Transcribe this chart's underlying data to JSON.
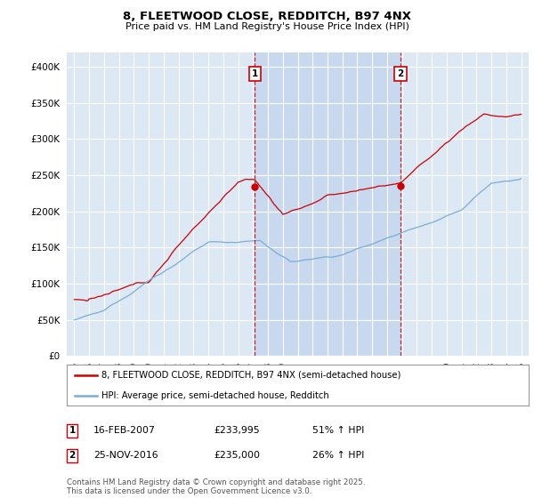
{
  "title_line1": "8, FLEETWOOD CLOSE, REDDITCH, B97 4NX",
  "title_line2": "Price paid vs. HM Land Registry's House Price Index (HPI)",
  "background_color": "#ffffff",
  "plot_bg_color": "#dde8f5",
  "shade_color": "#c8d8ee",
  "grid_color": "#ffffff",
  "red_color": "#cc0000",
  "blue_color": "#7aadd4",
  "vline_color": "#cc0000",
  "annotation1_label": "1",
  "annotation2_label": "2",
  "legend_red": "8, FLEETWOOD CLOSE, REDDITCH, B97 4NX (semi-detached house)",
  "legend_blue": "HPI: Average price, semi-detached house, Redditch",
  "table_row1": [
    "1",
    "16-FEB-2007",
    "£233,995",
    "51% ↑ HPI"
  ],
  "table_row2": [
    "2",
    "25-NOV-2016",
    "£235,000",
    "26% ↑ HPI"
  ],
  "footer": "Contains HM Land Registry data © Crown copyright and database right 2025.\nThis data is licensed under the Open Government Licence v3.0.",
  "ylim": [
    0,
    420000
  ],
  "yticks": [
    0,
    50000,
    100000,
    150000,
    200000,
    250000,
    300000,
    350000,
    400000
  ],
  "xmin": 1994.5,
  "xmax": 2025.5,
  "vline1_x": 2007.12,
  "vline2_x": 2016.9,
  "sale1_y": 233995,
  "sale2_y": 235000
}
